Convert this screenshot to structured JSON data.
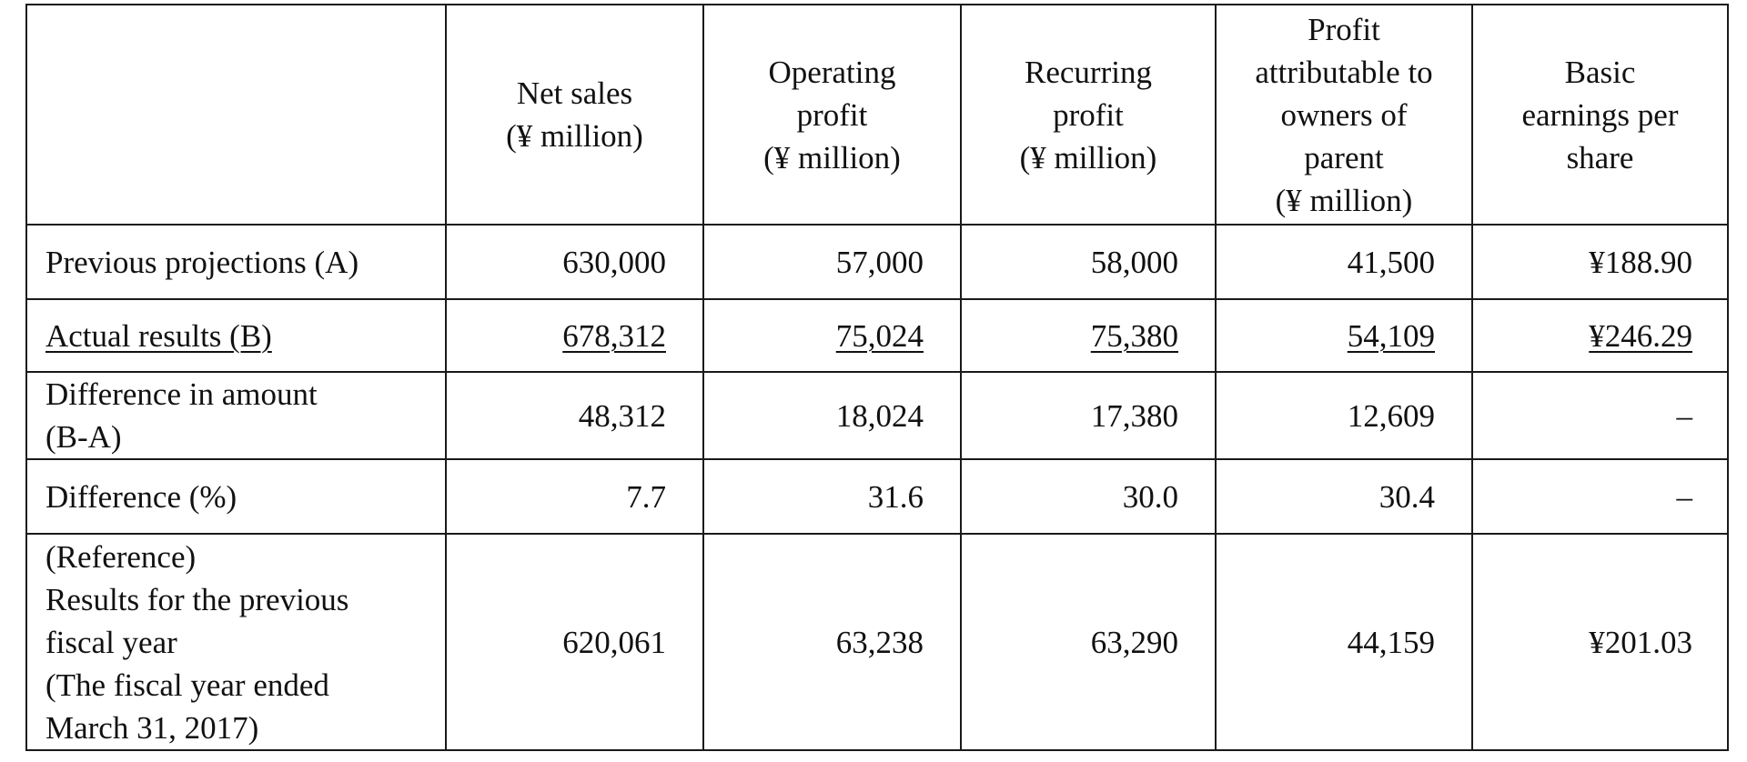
{
  "table": {
    "header": [
      {
        "key": "label",
        "lines": []
      },
      {
        "key": "net_sales",
        "lines": [
          "Net sales",
          "(¥ million)"
        ]
      },
      {
        "key": "operating_profit",
        "lines": [
          "Operating",
          "profit",
          "(¥ million)"
        ]
      },
      {
        "key": "recurring_profit",
        "lines": [
          "Recurring",
          "profit",
          "(¥ million)"
        ]
      },
      {
        "key": "profit_owners",
        "lines": [
          "Profit",
          "attributable to",
          "owners of",
          "parent",
          "(¥ million)"
        ]
      },
      {
        "key": "eps",
        "lines": [
          "Basic",
          "earnings per",
          "share"
        ]
      }
    ],
    "rows": [
      {
        "label_lines": [
          "Previous projections (A)"
        ],
        "values": [
          "630,000",
          "57,000",
          "58,000",
          "41,500",
          "¥188.90"
        ],
        "underline": false
      },
      {
        "label_lines": [
          "Actual results (B)"
        ],
        "values": [
          "678,312",
          "75,024",
          "75,380",
          "54,109",
          "¥246.29"
        ],
        "underline": true
      },
      {
        "label_lines": [
          "Difference in amount",
          "(B-A)"
        ],
        "values": [
          "48,312",
          "18,024",
          "17,380",
          "12,609",
          "–"
        ],
        "underline": false
      },
      {
        "label_lines": [
          "Difference (%)"
        ],
        "values": [
          "7.7",
          "31.6",
          "30.0",
          "30.4",
          "–"
        ],
        "underline": false
      },
      {
        "label_lines": [
          "(Reference)",
          "Results for the previous",
          "fiscal year",
          "(The fiscal year ended",
          "March 31, 2017)"
        ],
        "values": [
          "620,061",
          "63,238",
          "63,290",
          "44,159",
          "¥201.03"
        ],
        "underline": false
      }
    ]
  }
}
